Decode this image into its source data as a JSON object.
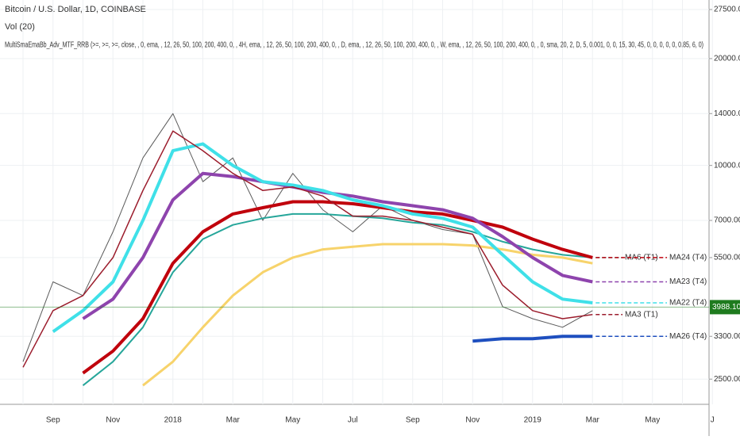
{
  "chart_data": {
    "type": "line",
    "title": "Bitcoin / U.S. Dollar, 1D, COINBASE",
    "subtitle": "Vol (20)",
    "indicator": "MultiSmaEmaBb_Adv_MTF_RRB (>=, >=, >=, close, , 0, ema, , 12, 26, 50, 100, 200, 400, 0, , 4H, ema, , 12, 26, 50, 100, 200, 400, 0, , D, ema, , 12, 26, 50, 100, 200, 400, 0, , W, ema, , 12, 26, 50, 100, 200, 400, 0, , 0, sma, 20, 2, D, 5, 0.001, 0, 0, 15, 30, 45, 0, 0, 0, 0, 0, 0.85, 6, 0)",
    "categories": [
      null,
      "Sep",
      null,
      "Nov",
      null,
      "2018",
      null,
      "Mar",
      null,
      "May",
      null,
      "Jul",
      null,
      "Sep",
      null,
      "Nov",
      null,
      "2019",
      null,
      "Mar",
      null,
      "May",
      null,
      "J"
    ],
    "log_scale": true,
    "grid": true,
    "ylim": [
      2123,
      29250
    ],
    "yticks": [
      {
        "value": 2500,
        "label": "2500.00"
      },
      {
        "value": 3300,
        "label": "3300.00"
      },
      {
        "value": 5500,
        "label": "5500.00"
      },
      {
        "value": 7000,
        "label": "7000.00"
      },
      {
        "value": 10000,
        "label": "10000.00"
      },
      {
        "value": 14000,
        "label": "14000.00"
      },
      {
        "value": 20000,
        "label": "20000.00"
      },
      {
        "value": 27500,
        "label": "27500.00"
      }
    ],
    "last_price": {
      "value": 3988.1,
      "label": "3988.10",
      "color": "#1e7b1e"
    },
    "series": [
      {
        "color": "#5a5a5a",
        "width": 1,
        "values": [
          2800,
          4700,
          4300,
          6500,
          10500,
          14000,
          9000,
          10500,
          7000,
          9500,
          7500,
          6500,
          7700,
          7000,
          6600,
          6400,
          4000,
          3700,
          3500,
          3900,
          null,
          null,
          null,
          null
        ]
      },
      {
        "color": "#f7d36b",
        "width": 3,
        "values": [
          null,
          null,
          null,
          null,
          2400,
          2800,
          3500,
          4300,
          5000,
          5500,
          5800,
          5900,
          6000,
          6000,
          6000,
          5950,
          5800,
          5600,
          5500,
          5300,
          null,
          null,
          null,
          null
        ]
      },
      {
        "name": "MA6 (T1)",
        "color": "#26a69a",
        "width": 2,
        "values": [
          null,
          null,
          2400,
          2800,
          3500,
          5000,
          6200,
          6800,
          7100,
          7300,
          7300,
          7200,
          7100,
          6900,
          6800,
          6500,
          6100,
          5800,
          5600,
          5500,
          null,
          null,
          null,
          null
        ]
      },
      {
        "name": "MA24 (T4)",
        "color": "#c0000c",
        "width": 4,
        "values": [
          null,
          null,
          2600,
          3000,
          3700,
          5300,
          6500,
          7300,
          7600,
          7900,
          7900,
          7800,
          7600,
          7400,
          7300,
          7000,
          6700,
          6200,
          5800,
          5500,
          null,
          null,
          null,
          null
        ]
      },
      {
        "name": "MA23 (T4)",
        "color": "#8e44ad",
        "width": 4,
        "values": [
          null,
          null,
          3700,
          4200,
          5500,
          8000,
          9500,
          9300,
          9000,
          8700,
          8400,
          8200,
          7900,
          7700,
          7500,
          7100,
          6300,
          5500,
          4900,
          4700,
          null,
          null,
          null,
          null
        ]
      },
      {
        "name": "MA22 (T4)",
        "color": "#3fe0e8",
        "width": 4,
        "values": [
          null,
          3400,
          3900,
          4700,
          7000,
          11000,
          11500,
          10000,
          9000,
          8800,
          8500,
          8000,
          7700,
          7300,
          7100,
          6700,
          5600,
          4700,
          4200,
          4100,
          null,
          null,
          null,
          null
        ]
      },
      {
        "name": "MA3 (T1)",
        "color": "#9b1c2c",
        "width": 1.5,
        "values": [
          2700,
          3900,
          4300,
          5500,
          8500,
          12500,
          11000,
          9500,
          8500,
          8700,
          8200,
          7200,
          7200,
          7000,
          6700,
          6400,
          4600,
          3900,
          3700,
          3800,
          null,
          null,
          null,
          null
        ]
      },
      {
        "name": "MA26 (T4)",
        "color": "#1e4fbf",
        "width": 4,
        "values": [
          null,
          null,
          null,
          null,
          null,
          null,
          null,
          null,
          null,
          null,
          null,
          null,
          null,
          null,
          null,
          3200,
          3250,
          3250,
          3300,
          3300,
          null,
          null,
          null,
          null
        ]
      }
    ]
  }
}
